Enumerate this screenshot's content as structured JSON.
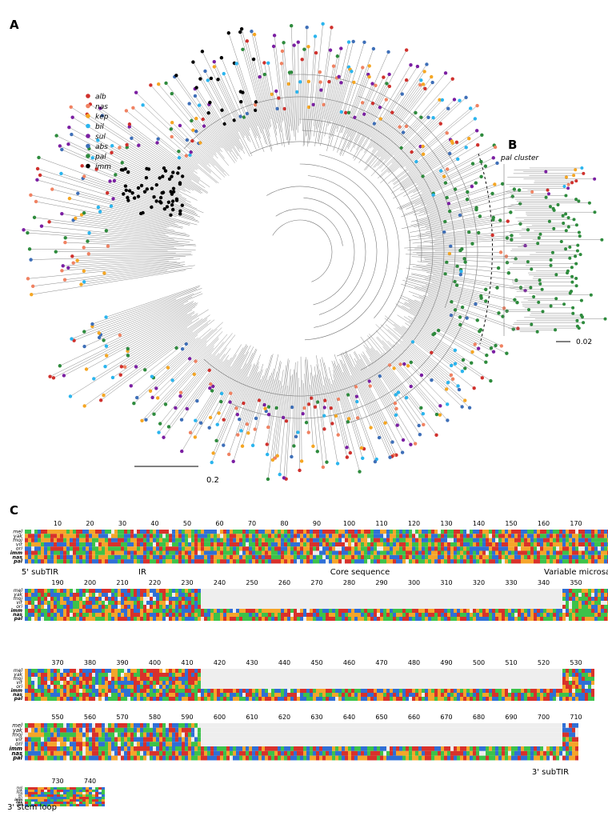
{
  "panel_a": {
    "label": "A",
    "legend": [
      {
        "name": "alb",
        "color": "#d0312d"
      },
      {
        "name": "nas",
        "color": "#f08262"
      },
      {
        "name": "kep",
        "color": "#f5a623"
      },
      {
        "name": "bil",
        "color": "#2bb5ee"
      },
      {
        "name": "sul",
        "color": "#7b1fa2"
      },
      {
        "name": "abs",
        "color": "#3e6fb8"
      },
      {
        "name": "pal",
        "color": "#2e8b3d"
      },
      {
        "name": "imm",
        "color": "#000000"
      }
    ],
    "scale_bar": "0.2"
  },
  "panel_b": {
    "label": "B",
    "title": "pal cluster",
    "scale_bar": "0.02"
  },
  "panel_c": {
    "label": "C",
    "sequence_names": [
      "mel",
      "yak",
      "moj",
      "vir",
      "ori",
      "imm",
      "nas",
      "pal"
    ],
    "blocks": [
      {
        "positions": [
          10,
          20,
          30,
          40,
          50,
          60,
          70,
          80,
          90,
          100,
          110,
          120,
          130,
          140,
          150,
          160,
          170
        ],
        "annotations": [
          "5' subTIR",
          "IR",
          "Core sequence",
          "Variable microsatellites"
        ]
      },
      {
        "positions": [
          190,
          200,
          210,
          220,
          230,
          240,
          250,
          260,
          270,
          280,
          290,
          300,
          310,
          320,
          330,
          340,
          350
        ],
        "annotations": []
      },
      {
        "positions": [
          370,
          380,
          390,
          400,
          410,
          420,
          430,
          440,
          450,
          460,
          470,
          480,
          490,
          500,
          510,
          520,
          530
        ],
        "annotations": []
      },
      {
        "positions": [
          550,
          560,
          570,
          580,
          590,
          600,
          610,
          620,
          630,
          640,
          650,
          660,
          670,
          680,
          690,
          700,
          710
        ],
        "annotations": [
          "3' subTIR"
        ]
      },
      {
        "positions": [
          730,
          740
        ],
        "annotations": [
          "3' stem loop"
        ]
      }
    ]
  }
}
